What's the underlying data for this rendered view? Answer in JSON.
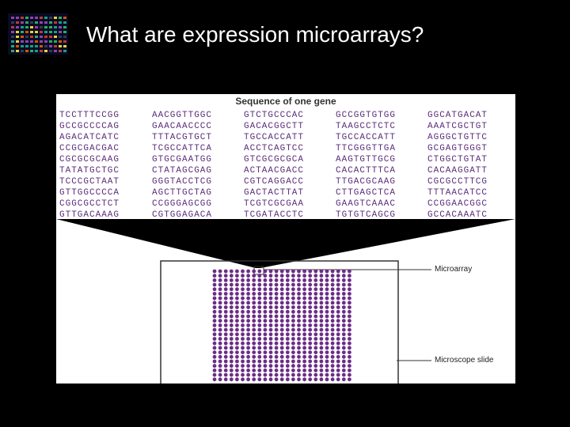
{
  "title": "What are expression microarrays?",
  "figure": {
    "heading": "Sequence of one gene",
    "sequence_columns": [
      [
        "TCCTTTCCGG",
        "GCCGCCCCAG",
        "AGACATCATC",
        "CCGCGACGAC",
        "CGCGCGCAAG",
        "TATATGCTGC",
        "TCCCGCTAAT",
        "GTTGGCCCCA",
        "CGGCGCCTCT",
        "GTTGACAAAG"
      ],
      [
        "AACGGTTGGC",
        "GAACAACCCC",
        "TTTACGTGCT",
        "TCGCCATTCA",
        "GTGCGAATGG",
        "CTATAGCGAG",
        "GGGTACCTCG",
        "AGCTTGCTAG",
        "CCGGGAGCGG",
        "CGTGGAGACA"
      ],
      [
        "GTCTGCCCAC",
        "GACACGGCTT",
        "TGCCACCATT",
        "ACCTCAGTCC",
        "GTCGCGCGCA",
        "ACTAACGACC",
        "CGTCAGGACC",
        "GACTACTTAT",
        "TCGTCGCGAA",
        "TCGATACCTC"
      ],
      [
        "GCCGGTGTGG",
        "TAAGCCTCTC",
        "TGCCACCATT",
        "TTCGGGTTGA",
        "AAGTGTTGCG",
        "CACACTTTCA",
        "TTGACGCAAG",
        "CTTGAGCTCA",
        "GAAGTCAAAC",
        "TGTGTCAGCG"
      ],
      [
        "GGCATGACAT",
        "AAATCGCTGT",
        "AGGGCTGTTC",
        "GCGAGTGGGT",
        "CTGGCTGTAT",
        "CACAAGGATT",
        "CGCGCCTTCG",
        "TTTAACATCC",
        "CCGGAACGGC",
        "GCCACAAATC"
      ]
    ],
    "labels": {
      "microarray": "Microarray",
      "slide": "Microscope slide"
    },
    "colors": {
      "sequence": "#5a2d7a",
      "dot": "#6b2d86",
      "line": "#333333"
    }
  }
}
